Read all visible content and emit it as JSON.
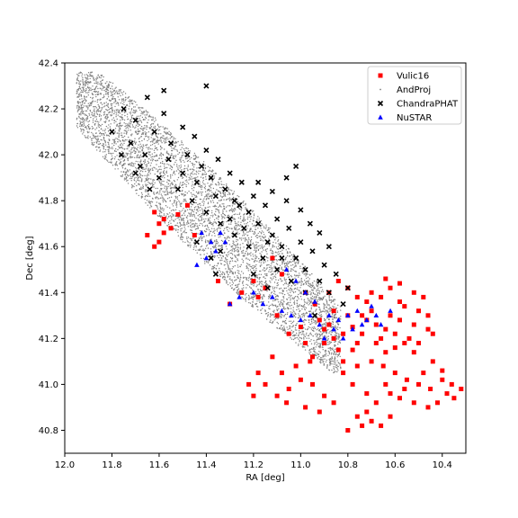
{
  "chart_data": {
    "type": "scatter",
    "xlabel": "RA [deg]",
    "ylabel": "Dec [deg]",
    "xlim": [
      12.0,
      10.3
    ],
    "ylim": [
      40.7,
      42.4
    ],
    "x_reversed": true,
    "xticks": [
      12.0,
      11.8,
      11.6,
      11.4,
      11.2,
      11.0,
      10.8,
      10.6,
      10.4
    ],
    "xtick_labels": [
      "12.0",
      "11.8",
      "11.6",
      "11.4",
      "11.2",
      "11.0",
      "10.8",
      "10.6",
      "10.4"
    ],
    "yticks": [
      40.8,
      41.0,
      41.2,
      41.4,
      41.6,
      41.8,
      42.0,
      42.2,
      42.4
    ],
    "ytick_labels": [
      "40.8",
      "41.0",
      "41.2",
      "41.4",
      "41.6",
      "41.8",
      "42.0",
      "42.2",
      "42.4"
    ],
    "legend_position": "top-right",
    "series": [
      {
        "name": "Vulic16",
        "marker": "square",
        "color": "#ff0000",
        "points": [
          [
            11.65,
            41.65
          ],
          [
            11.62,
            41.75
          ],
          [
            11.6,
            41.7
          ],
          [
            11.58,
            41.72
          ],
          [
            11.55,
            41.68
          ],
          [
            11.6,
            41.62
          ],
          [
            11.52,
            41.74
          ],
          [
            11.48,
            41.78
          ],
          [
            11.45,
            41.65
          ],
          [
            11.62,
            41.6
          ],
          [
            11.58,
            41.66
          ],
          [
            11.2,
            41.45
          ],
          [
            11.18,
            41.38
          ],
          [
            11.15,
            41.42
          ],
          [
            11.1,
            41.3
          ],
          [
            11.05,
            41.22
          ],
          [
            11.0,
            41.25
          ],
          [
            10.98,
            41.18
          ],
          [
            10.95,
            41.12
          ],
          [
            10.92,
            41.28
          ],
          [
            10.9,
            41.24
          ],
          [
            10.88,
            41.26
          ],
          [
            10.86,
            41.2
          ],
          [
            10.84,
            41.15
          ],
          [
            10.82,
            41.22
          ],
          [
            10.8,
            41.3
          ],
          [
            10.78,
            41.25
          ],
          [
            10.76,
            41.18
          ],
          [
            10.74,
            41.22
          ],
          [
            10.72,
            41.28
          ],
          [
            10.7,
            41.32
          ],
          [
            10.68,
            41.26
          ],
          [
            10.66,
            41.2
          ],
          [
            10.64,
            41.24
          ],
          [
            10.62,
            41.3
          ],
          [
            10.6,
            41.22
          ],
          [
            10.58,
            41.28
          ],
          [
            10.56,
            41.34
          ],
          [
            10.54,
            41.2
          ],
          [
            10.52,
            41.26
          ],
          [
            10.5,
            41.32
          ],
          [
            10.48,
            41.38
          ],
          [
            10.46,
            41.3
          ],
          [
            10.44,
            41.22
          ],
          [
            10.72,
            41.36
          ],
          [
            10.7,
            41.4
          ],
          [
            10.66,
            41.38
          ],
          [
            10.62,
            41.42
          ],
          [
            10.58,
            41.36
          ],
          [
            10.74,
            41.3
          ],
          [
            10.68,
            41.18
          ],
          [
            10.64,
            41.14
          ],
          [
            10.6,
            41.16
          ],
          [
            10.56,
            41.18
          ],
          [
            10.52,
            41.14
          ],
          [
            10.78,
            41.15
          ],
          [
            10.82,
            41.1
          ],
          [
            10.76,
            41.08
          ],
          [
            10.7,
            41.1
          ],
          [
            10.65,
            41.08
          ],
          [
            10.6,
            41.05
          ],
          [
            10.55,
            41.02
          ],
          [
            10.5,
            41.0
          ],
          [
            10.45,
            40.98
          ],
          [
            10.4,
            41.02
          ],
          [
            10.38,
            40.96
          ],
          [
            10.35,
            40.94
          ],
          [
            10.42,
            40.92
          ],
          [
            10.46,
            40.9
          ],
          [
            10.52,
            40.92
          ],
          [
            10.58,
            40.94
          ],
          [
            10.62,
            40.96
          ],
          [
            10.68,
            40.92
          ],
          [
            10.72,
            40.88
          ],
          [
            10.76,
            40.86
          ],
          [
            10.74,
            40.82
          ],
          [
            10.7,
            40.84
          ],
          [
            10.66,
            40.82
          ],
          [
            10.62,
            40.86
          ],
          [
            10.8,
            40.8
          ],
          [
            10.86,
            40.92
          ],
          [
            10.9,
            40.95
          ],
          [
            10.95,
            41.0
          ],
          [
            11.0,
            41.02
          ],
          [
            11.05,
            40.98
          ],
          [
            11.1,
            40.95
          ],
          [
            11.15,
            41.0
          ],
          [
            11.08,
            41.05
          ],
          [
            11.02,
            41.08
          ],
          [
            10.96,
            41.1
          ],
          [
            11.12,
            41.12
          ],
          [
            11.18,
            41.05
          ],
          [
            11.22,
            41.0
          ],
          [
            11.2,
            40.95
          ],
          [
            11.06,
            40.92
          ],
          [
            10.98,
            40.9
          ],
          [
            10.92,
            40.88
          ],
          [
            11.3,
            41.35
          ],
          [
            11.25,
            41.4
          ],
          [
            11.35,
            41.45
          ],
          [
            11.12,
            41.55
          ],
          [
            11.08,
            41.48
          ],
          [
            10.98,
            41.4
          ],
          [
            10.94,
            41.35
          ],
          [
            10.88,
            41.4
          ],
          [
            10.84,
            41.45
          ],
          [
            10.8,
            41.42
          ],
          [
            10.76,
            41.38
          ],
          [
            10.86,
            41.32
          ],
          [
            10.9,
            41.18
          ],
          [
            10.82,
            41.05
          ],
          [
            10.78,
            41.0
          ],
          [
            10.72,
            40.96
          ],
          [
            10.64,
            41.0
          ],
          [
            10.56,
            40.98
          ],
          [
            10.48,
            41.05
          ],
          [
            10.44,
            41.1
          ],
          [
            10.4,
            41.06
          ],
          [
            10.36,
            41.0
          ],
          [
            10.32,
            40.98
          ],
          [
            10.5,
            41.18
          ],
          [
            10.46,
            41.24
          ],
          [
            10.58,
            41.44
          ],
          [
            10.64,
            41.46
          ],
          [
            10.52,
            41.4
          ]
        ]
      },
      {
        "name": "AndProj",
        "marker": "dot",
        "color": "#808080",
        "points": []
      },
      {
        "name": "ChandraPHAT",
        "marker": "x",
        "color": "#000000",
        "points": [
          [
            11.75,
            42.2
          ],
          [
            11.7,
            42.15
          ],
          [
            11.65,
            42.25
          ],
          [
            11.62,
            42.1
          ],
          [
            11.58,
            42.18
          ],
          [
            11.55,
            42.05
          ],
          [
            11.5,
            42.12
          ],
          [
            11.48,
            42.0
          ],
          [
            11.45,
            42.08
          ],
          [
            11.42,
            41.95
          ],
          [
            11.4,
            42.02
          ],
          [
            11.38,
            41.9
          ],
          [
            11.35,
            41.98
          ],
          [
            11.32,
            41.85
          ],
          [
            11.3,
            41.92
          ],
          [
            11.28,
            41.8
          ],
          [
            11.25,
            41.88
          ],
          [
            11.22,
            41.75
          ],
          [
            11.2,
            41.82
          ],
          [
            11.18,
            41.7
          ],
          [
            11.15,
            41.78
          ],
          [
            11.12,
            41.65
          ],
          [
            11.1,
            41.72
          ],
          [
            11.08,
            41.6
          ],
          [
            11.05,
            41.68
          ],
          [
            11.02,
            41.55
          ],
          [
            11.0,
            41.62
          ],
          [
            10.98,
            41.5
          ],
          [
            10.95,
            41.58
          ],
          [
            10.92,
            41.45
          ],
          [
            10.9,
            41.52
          ],
          [
            10.88,
            41.4
          ],
          [
            10.85,
            41.48
          ],
          [
            10.82,
            41.35
          ],
          [
            10.8,
            41.42
          ],
          [
            11.68,
            41.95
          ],
          [
            11.6,
            41.9
          ],
          [
            11.52,
            41.85
          ],
          [
            11.46,
            41.8
          ],
          [
            11.4,
            41.75
          ],
          [
            11.34,
            41.7
          ],
          [
            11.28,
            41.65
          ],
          [
            11.22,
            41.6
          ],
          [
            11.16,
            41.55
          ],
          [
            11.1,
            41.5
          ],
          [
            11.04,
            41.45
          ],
          [
            10.98,
            41.4
          ],
          [
            11.72,
            42.05
          ],
          [
            11.66,
            42.0
          ],
          [
            11.56,
            41.98
          ],
          [
            11.5,
            41.92
          ],
          [
            11.44,
            41.88
          ],
          [
            11.36,
            41.82
          ],
          [
            11.26,
            41.78
          ],
          [
            11.18,
            41.88
          ],
          [
            11.12,
            41.84
          ],
          [
            11.06,
            41.8
          ],
          [
            11.0,
            41.76
          ],
          [
            10.96,
            41.7
          ],
          [
            10.92,
            41.66
          ],
          [
            11.4,
            42.3
          ],
          [
            11.58,
            42.28
          ],
          [
            11.02,
            41.95
          ],
          [
            11.06,
            41.9
          ],
          [
            11.3,
            41.72
          ],
          [
            11.24,
            41.68
          ],
          [
            11.14,
            41.62
          ],
          [
            11.08,
            41.55
          ],
          [
            11.34,
            41.58
          ],
          [
            11.2,
            41.48
          ],
          [
            11.14,
            41.42
          ],
          [
            10.94,
            41.3
          ],
          [
            10.88,
            41.6
          ],
          [
            11.8,
            42.1
          ],
          [
            11.76,
            42.0
          ],
          [
            11.7,
            41.92
          ],
          [
            11.64,
            41.85
          ],
          [
            11.44,
            41.62
          ],
          [
            11.38,
            41.55
          ],
          [
            11.36,
            41.48
          ]
        ]
      },
      {
        "name": "NuSTAR",
        "marker": "triangle",
        "color": "#0000ff",
        "points": [
          [
            11.42,
            41.66
          ],
          [
            11.38,
            41.62
          ],
          [
            11.34,
            41.66
          ],
          [
            11.36,
            41.58
          ],
          [
            11.4,
            41.55
          ],
          [
            11.2,
            41.4
          ],
          [
            11.16,
            41.35
          ],
          [
            11.12,
            41.38
          ],
          [
            11.08,
            41.32
          ],
          [
            11.04,
            41.3
          ],
          [
            11.0,
            41.28
          ],
          [
            10.96,
            41.3
          ],
          [
            10.92,
            41.26
          ],
          [
            10.88,
            41.3
          ],
          [
            10.84,
            41.28
          ],
          [
            10.8,
            41.3
          ],
          [
            10.76,
            41.32
          ],
          [
            10.72,
            41.28
          ],
          [
            10.7,
            41.34
          ],
          [
            10.68,
            41.3
          ],
          [
            10.74,
            41.26
          ],
          [
            10.78,
            41.24
          ],
          [
            10.82,
            41.2
          ],
          [
            10.86,
            41.24
          ],
          [
            10.9,
            41.2
          ],
          [
            11.06,
            41.5
          ],
          [
            11.02,
            41.45
          ],
          [
            10.98,
            41.4
          ],
          [
            11.26,
            41.38
          ],
          [
            11.3,
            41.35
          ],
          [
            11.44,
            41.52
          ],
          [
            11.32,
            41.62
          ],
          [
            10.66,
            41.26
          ],
          [
            10.62,
            41.32
          ],
          [
            10.94,
            41.36
          ]
        ]
      }
    ]
  }
}
